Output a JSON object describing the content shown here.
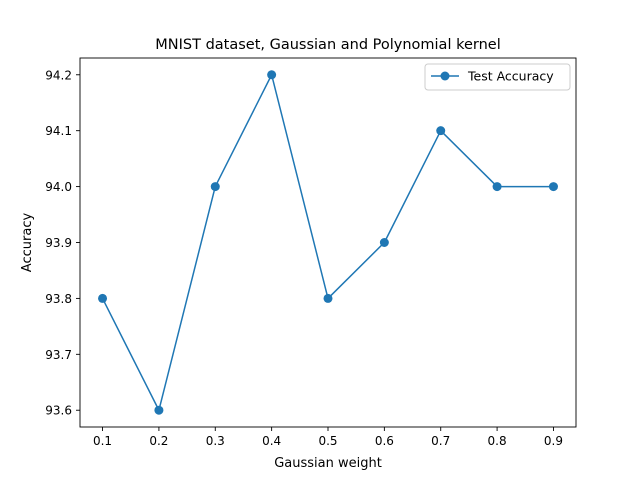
{
  "chart_data": {
    "type": "line",
    "title": "MNIST dataset, Gaussian and Polynomial kernel",
    "xlabel": "Gaussian weight",
    "ylabel": "Accuracy",
    "x": [
      0.1,
      0.2,
      0.3,
      0.4,
      0.5,
      0.6,
      0.7,
      0.8,
      0.9
    ],
    "x_tick_labels": [
      "0.1",
      "0.2",
      "0.3",
      "0.4",
      "0.5",
      "0.6",
      "0.7",
      "0.8",
      "0.9"
    ],
    "y_tick_values": [
      93.6,
      93.7,
      93.8,
      93.9,
      94.0,
      94.1,
      94.2
    ],
    "y_tick_labels": [
      "93.6",
      "93.7",
      "93.8",
      "93.9",
      "94.0",
      "94.1",
      "94.2"
    ],
    "xlim": [
      0.06,
      0.94
    ],
    "ylim": [
      93.57,
      94.23
    ],
    "grid": false,
    "legend_position": "upper right",
    "series": [
      {
        "name": "Test Accuracy",
        "color": "#1f77b4",
        "marker": "circle",
        "values": [
          93.8,
          93.6,
          94.0,
          94.2,
          93.8,
          93.9,
          94.1,
          94.0,
          94.0
        ]
      }
    ]
  }
}
